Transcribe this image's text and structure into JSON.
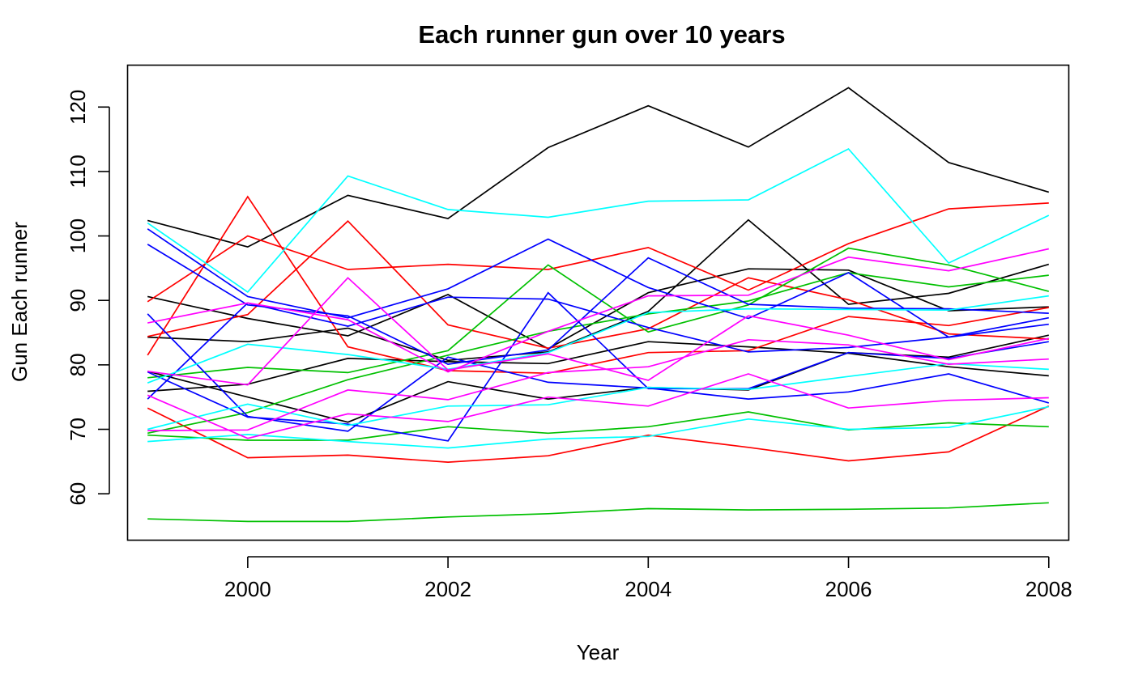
{
  "chart_data": {
    "type": "line",
    "title": "Each runner gun over 10 years",
    "xlabel": "Year",
    "ylabel": "Gun Each runner",
    "x": [
      1999,
      2000,
      2001,
      2002,
      2003,
      2004,
      2005,
      2006,
      2007,
      2008
    ],
    "xlim": [
      1998.8,
      2008.2
    ],
    "ylim": [
      52.8,
      126.5
    ],
    "xticks": [
      2000,
      2002,
      2004,
      2006,
      2008
    ],
    "yticks": [
      60,
      70,
      80,
      90,
      100,
      110,
      120
    ],
    "grid": false,
    "legend": "none",
    "series": [
      {
        "color": "#000000",
        "values": [
          102.4,
          98.3,
          106.3,
          102.7,
          113.7,
          120.2,
          113.8,
          123.0,
          111.4,
          106.8
        ]
      },
      {
        "color": "#000000",
        "values": [
          90.6,
          87.2,
          84.5,
          90.9,
          82.5,
          91.2,
          94.9,
          94.7,
          88.4,
          89.0
        ]
      },
      {
        "color": "#000000",
        "values": [
          84.3,
          83.6,
          85.7,
          80.7,
          82.0,
          88.3,
          102.5,
          89.4,
          91.1,
          95.6
        ]
      },
      {
        "color": "#000000",
        "values": [
          79.0,
          75.0,
          71.1,
          77.4,
          74.7,
          76.5,
          76.1,
          81.9,
          81.2,
          84.6
        ]
      },
      {
        "color": "#000000",
        "values": [
          75.9,
          77.0,
          81.0,
          80.5,
          80.2,
          83.6,
          82.8,
          81.8,
          79.7,
          78.3
        ]
      },
      {
        "color": "#ff0000",
        "values": [
          89.8,
          100.0,
          94.8,
          95.6,
          94.8,
          98.2,
          91.6,
          98.8,
          104.2,
          105.1
        ]
      },
      {
        "color": "#ff0000",
        "values": [
          81.5,
          106.1,
          82.8,
          79.1,
          78.7,
          81.9,
          82.2,
          87.5,
          86.1,
          88.9
        ]
      },
      {
        "color": "#ff0000",
        "values": [
          84.4,
          87.8,
          102.3,
          86.2,
          82.6,
          85.6,
          93.5,
          90.1,
          84.8,
          84.0
        ]
      },
      {
        "color": "#ff0000",
        "values": [
          73.3,
          65.6,
          66.0,
          64.9,
          65.9,
          69.1,
          67.2,
          65.1,
          66.5,
          73.6
        ]
      },
      {
        "color": "#00c000",
        "values": [
          78.0,
          79.6,
          78.8,
          82.2,
          95.5,
          85.1,
          89.3,
          98.1,
          95.5,
          91.4
        ]
      },
      {
        "color": "#00c000",
        "values": [
          69.4,
          72.6,
          77.7,
          81.5,
          85.2,
          87.9,
          89.9,
          94.3,
          92.1,
          93.9
        ]
      },
      {
        "color": "#00c000",
        "values": [
          69.1,
          68.3,
          68.3,
          70.4,
          69.4,
          70.4,
          72.7,
          69.9,
          71.0,
          70.4
        ]
      },
      {
        "color": "#00c000",
        "values": [
          56.1,
          55.7,
          55.7,
          56.4,
          56.9,
          57.7,
          57.5,
          57.6,
          57.8,
          58.6
        ]
      },
      {
        "color": "#0000ff",
        "values": [
          101.1,
          90.6,
          87.3,
          91.8,
          99.5,
          92.0,
          87.2,
          94.3,
          84.3,
          87.3
        ]
      },
      {
        "color": "#0000ff",
        "values": [
          98.7,
          89.3,
          87.6,
          80.1,
          82.3,
          96.6,
          89.4,
          88.8,
          88.7,
          88.0
        ]
      },
      {
        "color": "#0000ff",
        "values": [
          74.7,
          89.6,
          86.0,
          90.5,
          90.2,
          85.8,
          82.0,
          82.7,
          84.3,
          86.3
        ]
      },
      {
        "color": "#0000ff",
        "values": [
          87.9,
          72.0,
          69.7,
          81.2,
          77.3,
          76.4,
          74.7,
          75.8,
          78.6,
          74.1
        ]
      },
      {
        "color": "#0000ff",
        "values": [
          78.9,
          71.9,
          70.8,
          68.2,
          91.2,
          76.3,
          76.3,
          81.9,
          81.0,
          83.6
        ]
      },
      {
        "color": "#00ffff",
        "values": [
          102.0,
          91.3,
          109.3,
          104.1,
          102.9,
          105.4,
          105.6,
          113.5,
          95.8,
          103.2
        ]
      },
      {
        "color": "#00ffff",
        "values": [
          77.2,
          83.2,
          81.6,
          79.3,
          81.9,
          88.1,
          88.7,
          88.6,
          88.5,
          90.7
        ]
      },
      {
        "color": "#00ffff",
        "values": [
          70.0,
          73.9,
          70.6,
          73.6,
          73.8,
          76.5,
          76.2,
          78.2,
          80.2,
          79.3
        ]
      },
      {
        "color": "#00ffff",
        "values": [
          68.1,
          69.2,
          68.1,
          67.1,
          68.5,
          68.9,
          71.6,
          70.0,
          70.3,
          73.5
        ]
      },
      {
        "color": "#ff00ff",
        "values": [
          86.5,
          89.6,
          87.0,
          78.9,
          85.2,
          90.7,
          90.8,
          96.7,
          94.6,
          98.0
        ]
      },
      {
        "color": "#ff00ff",
        "values": [
          79.0,
          76.9,
          93.5,
          79.2,
          81.7,
          77.6,
          87.6,
          84.6,
          80.8,
          84.1
        ]
      },
      {
        "color": "#ff00ff",
        "values": [
          69.8,
          69.9,
          76.1,
          74.6,
          78.8,
          79.7,
          83.9,
          83.1,
          80.1,
          80.9
        ]
      },
      {
        "color": "#ff00ff",
        "values": [
          75.3,
          68.6,
          72.4,
          71.2,
          75.0,
          73.6,
          78.6,
          73.3,
          74.5,
          74.9
        ]
      }
    ]
  }
}
